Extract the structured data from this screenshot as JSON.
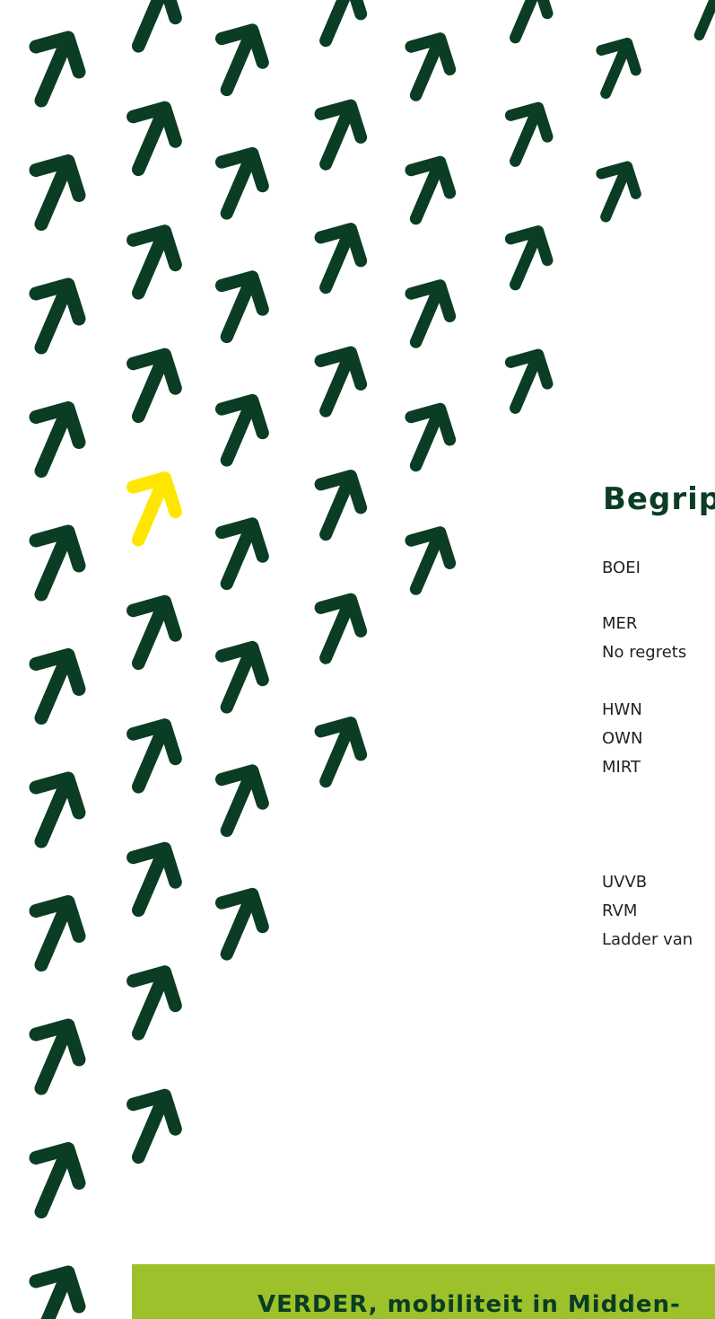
{
  "heading": "Begrip",
  "terms": [
    "BOEI",
    "MER",
    "No regrets",
    "HWN",
    "OWN",
    "MIRT",
    "UVVB",
    "RVM",
    "Ladder van"
  ],
  "footer": "VERDER, mobiliteit in Midden-"
}
